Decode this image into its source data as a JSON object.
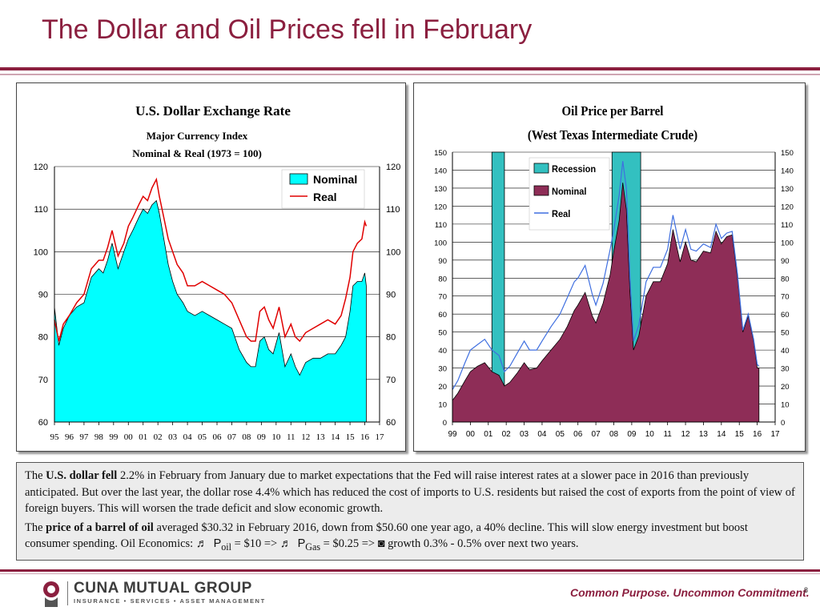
{
  "slide": {
    "title": "The Dollar and Oil Prices fell in February",
    "page_number": "8"
  },
  "chart_data": [
    {
      "type": "area",
      "title": "U.S. Dollar Exchange Rate",
      "subtitle1": "Major Currency Index",
      "subtitle2": "Nominal & Real (1973 = 100)",
      "ylim": [
        60,
        120
      ],
      "y_ticks": [
        60,
        70,
        80,
        90,
        100,
        110,
        120
      ],
      "x_tick_labels": [
        "95",
        "96",
        "97",
        "98",
        "99",
        "00",
        "01",
        "02",
        "03",
        "04",
        "05",
        "06",
        "07",
        "08",
        "09",
        "10",
        "11",
        "12",
        "13",
        "14",
        "15",
        "16",
        "17"
      ],
      "x_range": [
        1995,
        2017
      ],
      "grid": true,
      "legend_position": "top-right",
      "colors": {
        "Nominal": "#00ffff",
        "Real": "#e00000"
      },
      "series": [
        {
          "name": "Nominal",
          "kind": "area",
          "x": [
            1995.0,
            1995.3,
            1995.6,
            1996.0,
            1996.5,
            1997.0,
            1997.5,
            1998.0,
            1998.3,
            1998.6,
            1998.9,
            1999.3,
            1999.7,
            2000.0,
            2000.3,
            2000.7,
            2001.0,
            2001.3,
            2001.6,
            2001.9,
            2002.1,
            2002.4,
            2002.7,
            2003.0,
            2003.3,
            2003.7,
            2004.0,
            2004.5,
            2005.0,
            2005.5,
            2006.0,
            2006.5,
            2007.0,
            2007.5,
            2008.0,
            2008.3,
            2008.6,
            2008.9,
            2009.2,
            2009.5,
            2009.8,
            2010.2,
            2010.6,
            2011.0,
            2011.3,
            2011.6,
            2012.0,
            2012.5,
            2013.0,
            2013.5,
            2014.0,
            2014.4,
            2014.7,
            2015.0,
            2015.2,
            2015.5,
            2015.8,
            2016.0,
            2016.1
          ],
          "values": [
            87,
            78,
            82,
            85,
            87,
            88,
            94,
            96,
            95,
            98,
            102,
            96,
            100,
            103,
            105,
            108,
            110,
            109,
            111,
            112,
            109,
            103,
            97,
            93,
            90,
            88,
            86,
            85,
            86,
            85,
            84,
            83,
            82,
            77,
            74,
            73,
            73,
            79,
            80,
            77,
            76,
            81,
            73,
            76,
            73,
            71,
            74,
            75,
            75,
            76,
            76,
            78,
            80,
            86,
            92,
            93,
            93,
            95,
            92
          ]
        },
        {
          "name": "Real",
          "kind": "line",
          "x": [
            1995.0,
            1995.3,
            1995.6,
            1996.0,
            1996.5,
            1997.0,
            1997.5,
            1998.0,
            1998.3,
            1998.6,
            1998.9,
            1999.3,
            1999.7,
            2000.0,
            2000.3,
            2000.7,
            2001.0,
            2001.3,
            2001.6,
            2001.9,
            2002.1,
            2002.4,
            2002.7,
            2003.0,
            2003.3,
            2003.7,
            2004.0,
            2004.5,
            2005.0,
            2005.5,
            2006.0,
            2006.5,
            2007.0,
            2007.5,
            2008.0,
            2008.3,
            2008.6,
            2008.9,
            2009.2,
            2009.5,
            2009.8,
            2010.2,
            2010.6,
            2011.0,
            2011.3,
            2011.6,
            2012.0,
            2012.5,
            2013.0,
            2013.5,
            2014.0,
            2014.4,
            2014.7,
            2015.0,
            2015.2,
            2015.5,
            2015.8,
            2016.0,
            2016.1
          ],
          "values": [
            84,
            79,
            83,
            85,
            88,
            90,
            96,
            98,
            98,
            101,
            105,
            99,
            102,
            106,
            108,
            111,
            113,
            112,
            115,
            117,
            113,
            108,
            103,
            100,
            97,
            95,
            92,
            92,
            93,
            92,
            91,
            90,
            88,
            84,
            80,
            79,
            79,
            86,
            87,
            84,
            82,
            87,
            80,
            83,
            80,
            79,
            81,
            82,
            83,
            84,
            83,
            85,
            89,
            94,
            100,
            102,
            103,
            107,
            106
          ]
        }
      ]
    },
    {
      "type": "area",
      "title": "Oil Price per Barrel",
      "subtitle": "(West Texas Intermediate Crude)",
      "ylim": [
        0,
        150
      ],
      "y_ticks": [
        0,
        10,
        20,
        30,
        40,
        50,
        60,
        70,
        80,
        90,
        100,
        110,
        120,
        130,
        140,
        150
      ],
      "x_tick_labels": [
        "99",
        "00",
        "01",
        "02",
        "03",
        "04",
        "05",
        "06",
        "07",
        "08",
        "09",
        "10",
        "11",
        "12",
        "13",
        "14",
        "15",
        "16",
        "17"
      ],
      "x_range": [
        1999,
        2017
      ],
      "grid": true,
      "legend_position": "top-center",
      "colors": {
        "Recession": "#33c0c0",
        "Nominal": "#8e2d57",
        "Real": "#3f6fe0"
      },
      "recessions": [
        [
          2001.2,
          2001.9
        ],
        [
          2007.9,
          2009.5
        ]
      ],
      "series": [
        {
          "name": "Recession",
          "kind": "band"
        },
        {
          "name": "Nominal",
          "kind": "area",
          "x": [
            1999.0,
            1999.3,
            1999.7,
            2000.0,
            2000.4,
            2000.8,
            2001.2,
            2001.6,
            2001.9,
            2002.2,
            2002.6,
            2003.0,
            2003.3,
            2003.7,
            2004.0,
            2004.5,
            2005.0,
            2005.4,
            2005.8,
            2006.0,
            2006.4,
            2006.8,
            2007.0,
            2007.4,
            2007.8,
            2008.0,
            2008.3,
            2008.5,
            2008.7,
            2008.9,
            2009.1,
            2009.4,
            2009.8,
            2010.2,
            2010.6,
            2011.0,
            2011.3,
            2011.7,
            2012.0,
            2012.3,
            2012.6,
            2013.0,
            2013.4,
            2013.7,
            2014.0,
            2014.3,
            2014.6,
            2014.9,
            2015.2,
            2015.5,
            2015.8,
            2016.0,
            2016.1
          ],
          "values": [
            12,
            16,
            23,
            28,
            31,
            33,
            28,
            26,
            20,
            22,
            27,
            33,
            29,
            30,
            34,
            40,
            46,
            53,
            62,
            65,
            72,
            59,
            55,
            66,
            82,
            95,
            112,
            133,
            118,
            72,
            40,
            48,
            70,
            78,
            78,
            88,
            107,
            89,
            100,
            90,
            89,
            95,
            94,
            106,
            99,
            103,
            104,
            80,
            50,
            59,
            45,
            30,
            30
          ]
        },
        {
          "name": "Real",
          "kind": "line",
          "x": [
            1999.0,
            1999.3,
            1999.7,
            2000.0,
            2000.4,
            2000.8,
            2001.2,
            2001.6,
            2001.9,
            2002.2,
            2002.6,
            2003.0,
            2003.3,
            2003.7,
            2004.0,
            2004.5,
            2005.0,
            2005.4,
            2005.8,
            2006.0,
            2006.4,
            2006.8,
            2007.0,
            2007.4,
            2007.8,
            2008.0,
            2008.3,
            2008.5,
            2008.7,
            2008.9,
            2009.1,
            2009.4,
            2009.8,
            2010.2,
            2010.6,
            2011.0,
            2011.3,
            2011.7,
            2012.0,
            2012.3,
            2012.6,
            2013.0,
            2013.4,
            2013.7,
            2014.0,
            2014.3,
            2014.6,
            2014.9,
            2015.2,
            2015.5,
            2015.8,
            2016.0,
            2016.1
          ],
          "values": [
            18,
            23,
            33,
            40,
            43,
            46,
            40,
            37,
            28,
            31,
            38,
            45,
            40,
            40,
            45,
            53,
            60,
            69,
            78,
            80,
            87,
            71,
            65,
            77,
            96,
            107,
            126,
            145,
            130,
            80,
            45,
            54,
            78,
            86,
            86,
            96,
            115,
            96,
            107,
            96,
            95,
            99,
            97,
            110,
            102,
            105,
            106,
            82,
            51,
            60,
            46,
            32,
            31
          ]
        }
      ]
    }
  ],
  "commentary": {
    "p1": {
      "prefix": "The ",
      "bold": "U.S. dollar fell",
      "text": " 2.2% in February from January due to market expectations that the Fed will raise interest rates at a slower pace in 2016 than previously anticipated. But over the last year, the dollar rose 4.4% which has reduced the cost of imports to U.S. residents but raised the cost of exports from the point of view of foreign buyers. This will worsen the trade deficit and slow economic growth."
    },
    "p2": {
      "prefix": "The ",
      "bold": "price of a barrel of oil",
      "text": " averaged $30.32 in February 2016, down from $50.60 one year ago, a 40% decline. This will slow energy investment but boost consumer spending. Oil Economics: ",
      "arrow1": "♬",
      "p_label": "P",
      "oil_sub": "oil",
      "oil_change": " = $10 => ",
      "arrow2": "♬",
      "gas_sub": "Gas",
      "gas_change": " = $0.25 => ",
      "arrow3": "◙",
      "growth": " growth 0.3% - 0.5% over next two years."
    }
  },
  "footer": {
    "company": "CUNA MUTUAL GROUP",
    "subtitle": "INSURANCE • SERVICES • ASSET MANAGEMENT",
    "tagline": "Common Purpose. Uncommon Commitment."
  }
}
